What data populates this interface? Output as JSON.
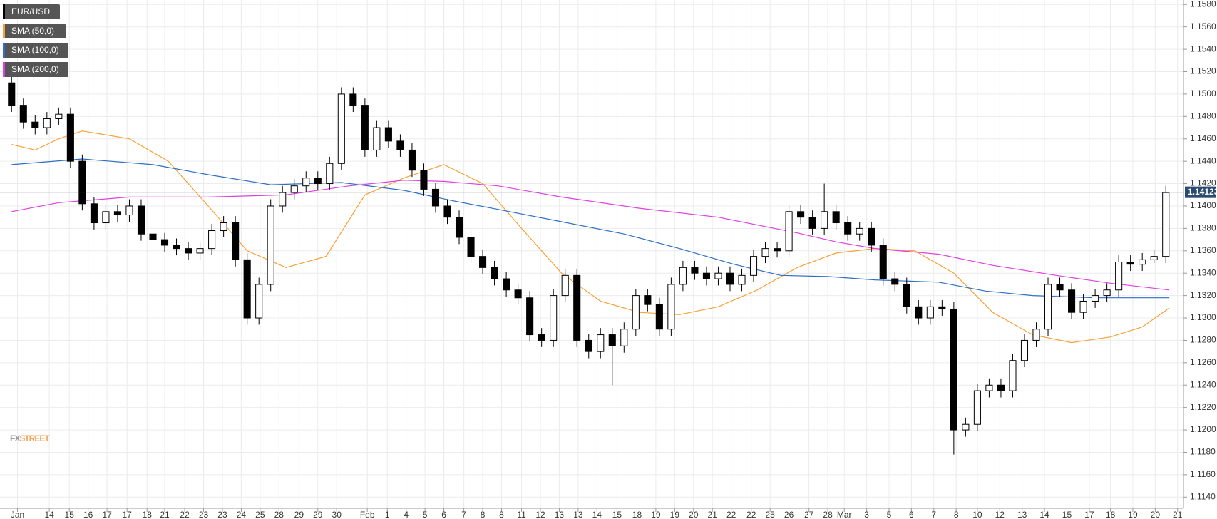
{
  "chart_data": {
    "type": "candlestick",
    "name": "EUR/USD",
    "up_color": "#ffffff",
    "down_color": "#000000",
    "edge_color": "#000000",
    "open": [
      1.151,
      1.149,
      1.1475,
      1.147,
      1.1478,
      1.1482,
      1.144,
      1.1402,
      1.1385,
      1.1395,
      1.1392,
      1.14,
      1.1375,
      1.137,
      1.1365,
      1.1362,
      1.1358,
      1.1362,
      1.1378,
      1.1385,
      1.1352,
      1.13,
      1.133,
      1.14,
      1.1412,
      1.1418,
      1.1425,
      1.142,
      1.1438,
      1.15,
      1.149,
      1.145,
      1.147,
      1.1458,
      1.145,
      1.1432,
      1.1415,
      1.14,
      1.139,
      1.1372,
      1.1355,
      1.1345,
      1.1335,
      1.1325,
      1.1318,
      1.1285,
      1.128,
      1.132,
      1.1338,
      1.128,
      1.127,
      1.1285,
      1.1275,
      1.129,
      1.132,
      1.1312,
      1.129,
      1.133,
      1.1345,
      1.134,
      1.1335,
      1.134,
      1.133,
      1.1338,
      1.1355,
      1.1362,
      1.136,
      1.1395,
      1.139,
      1.138,
      1.1395,
      1.1385,
      1.1375,
      1.138,
      1.1365,
      1.1335,
      1.133,
      1.131,
      1.13,
      1.131,
      1.1308,
      1.12,
      1.1205,
      1.1235,
      1.124,
      1.1235,
      1.1262,
      1.128,
      1.129,
      1.133,
      1.1325,
      1.1305,
      1.1315,
      1.132,
      1.1325,
      1.135,
      1.1348,
      1.1352,
      1.1355
    ],
    "high": [
      1.1516,
      1.1496,
      1.1481,
      1.1484,
      1.1488,
      1.1488,
      1.1446,
      1.1408,
      1.1401,
      1.1401,
      1.1406,
      1.1406,
      1.1381,
      1.1376,
      1.1371,
      1.1368,
      1.1368,
      1.1384,
      1.1391,
      1.1391,
      1.1358,
      1.1336,
      1.1406,
      1.1418,
      1.1424,
      1.1431,
      1.1431,
      1.1444,
      1.1506,
      1.1506,
      1.1496,
      1.1476,
      1.1476,
      1.1464,
      1.1456,
      1.1438,
      1.1421,
      1.1406,
      1.1396,
      1.1378,
      1.1361,
      1.1351,
      1.1341,
      1.1331,
      1.1324,
      1.1291,
      1.1326,
      1.1344,
      1.1344,
      1.1286,
      1.1291,
      1.1291,
      1.1296,
      1.1326,
      1.1326,
      1.1318,
      1.1336,
      1.1351,
      1.1351,
      1.1346,
      1.1346,
      1.1346,
      1.1344,
      1.1361,
      1.1368,
      1.1368,
      1.1401,
      1.1401,
      1.1396,
      1.142,
      1.1401,
      1.1391,
      1.1386,
      1.1386,
      1.1371,
      1.1341,
      1.1336,
      1.1316,
      1.1316,
      1.1316,
      1.1314,
      1.1211,
      1.1241,
      1.1246,
      1.1246,
      1.1268,
      1.1286,
      1.1296,
      1.1336,
      1.1336,
      1.1331,
      1.1321,
      1.1326,
      1.1331,
      1.1356,
      1.1356,
      1.1358,
      1.1361,
      1.1418
    ],
    "low": [
      1.1484,
      1.1469,
      1.1464,
      1.1464,
      1.1472,
      1.1434,
      1.1396,
      1.1379,
      1.1379,
      1.1386,
      1.1386,
      1.1369,
      1.1364,
      1.1359,
      1.1356,
      1.1352,
      1.1352,
      1.1356,
      1.1372,
      1.1346,
      1.1294,
      1.1294,
      1.1324,
      1.1394,
      1.1406,
      1.1412,
      1.1414,
      1.1414,
      1.1432,
      1.1484,
      1.1444,
      1.1444,
      1.1452,
      1.1444,
      1.1426,
      1.1409,
      1.1394,
      1.1384,
      1.1366,
      1.1349,
      1.1339,
      1.1329,
      1.1319,
      1.1312,
      1.1279,
      1.1274,
      1.1274,
      1.1314,
      1.1274,
      1.1264,
      1.1264,
      1.124,
      1.1269,
      1.1284,
      1.1306,
      1.1284,
      1.1284,
      1.1324,
      1.1334,
      1.1329,
      1.1329,
      1.1324,
      1.1324,
      1.1332,
      1.1349,
      1.1354,
      1.1354,
      1.1384,
      1.1374,
      1.1374,
      1.1379,
      1.1369,
      1.1369,
      1.1359,
      1.1329,
      1.1324,
      1.1304,
      1.1294,
      1.1294,
      1.1302,
      1.1178,
      1.1194,
      1.1199,
      1.1229,
      1.1229,
      1.1229,
      1.1256,
      1.1274,
      1.1284,
      1.1319,
      1.1299,
      1.1299,
      1.1309,
      1.1314,
      1.1319,
      1.1342,
      1.1342,
      1.1349,
      1.1349
    ],
    "close": [
      1.149,
      1.1475,
      1.147,
      1.1478,
      1.1482,
      1.144,
      1.1402,
      1.1385,
      1.1395,
      1.1392,
      1.14,
      1.1375,
      1.137,
      1.1365,
      1.1362,
      1.1358,
      1.1362,
      1.1378,
      1.1385,
      1.1352,
      1.13,
      1.133,
      1.14,
      1.1412,
      1.1418,
      1.1425,
      1.142,
      1.1438,
      1.15,
      1.149,
      1.145,
      1.147,
      1.1458,
      1.145,
      1.1432,
      1.1415,
      1.14,
      1.139,
      1.1372,
      1.1355,
      1.1345,
      1.1335,
      1.1325,
      1.1318,
      1.1285,
      1.128,
      1.132,
      1.1338,
      1.128,
      1.127,
      1.1285,
      1.1275,
      1.129,
      1.132,
      1.1312,
      1.129,
      1.133,
      1.1345,
      1.134,
      1.1335,
      1.134,
      1.133,
      1.1338,
      1.1355,
      1.1362,
      1.136,
      1.1395,
      1.139,
      1.138,
      1.1395,
      1.1385,
      1.1375,
      1.138,
      1.1365,
      1.1335,
      1.133,
      1.131,
      1.13,
      1.131,
      1.1308,
      1.12,
      1.1205,
      1.1235,
      1.124,
      1.1235,
      1.1262,
      1.128,
      1.129,
      1.133,
      1.1325,
      1.1305,
      1.1315,
      1.132,
      1.1325,
      1.135,
      1.1348,
      1.1352,
      1.1355,
      1.1412
    ],
    "series": [
      {
        "name": "SMA (50,0)",
        "color": "#f7a035",
        "x": [
          0,
          2,
          4,
          6,
          10,
          13.3,
          16.7,
          20,
          23.3,
          26.7,
          30,
          33.3,
          36.7,
          40,
          43.3,
          46.7,
          50,
          53.3,
          56.7,
          60,
          63.3,
          66.7,
          70,
          73.3,
          76.7,
          80,
          83.3,
          86.7,
          90,
          93.3,
          96,
          98.3
        ],
        "values": [
          1.1455,
          1.145,
          1.146,
          1.1467,
          1.146,
          1.144,
          1.14,
          1.136,
          1.1345,
          1.1355,
          1.141,
          1.1425,
          1.1437,
          1.142,
          1.138,
          1.134,
          1.1315,
          1.1305,
          1.1303,
          1.131,
          1.1325,
          1.1345,
          1.1358,
          1.1362,
          1.136,
          1.134,
          1.1305,
          1.1285,
          1.1278,
          1.1283,
          1.1292,
          1.1309
        ]
      },
      {
        "name": "SMA (100,0)",
        "color": "#2e6fc4",
        "x": [
          0,
          6,
          12,
          16.7,
          22,
          28,
          33.3,
          37.3,
          41.3,
          46.7,
          52,
          56.7,
          61.3,
          65.3,
          69.3,
          73.3,
          78.7,
          82.7,
          86.7,
          92,
          98.3
        ],
        "values": [
          1.1437,
          1.1442,
          1.1437,
          1.1428,
          1.1419,
          1.1421,
          1.1414,
          1.1405,
          1.1397,
          1.1386,
          1.1375,
          1.1362,
          1.1348,
          1.1338,
          1.1337,
          1.1334,
          1.1332,
          1.1324,
          1.132,
          1.1318,
          1.1318
        ]
      },
      {
        "name": "SMA (200,0)",
        "color": "#e040e0",
        "x": [
          0,
          4,
          10,
          16.7,
          23.3,
          28.7,
          33.3,
          36.7,
          41.3,
          46.7,
          53.3,
          60,
          66.7,
          70,
          73.3,
          78.7,
          83.3,
          88.7,
          93.3,
          98.3
        ],
        "values": [
          1.1395,
          1.1403,
          1.1408,
          1.1408,
          1.141,
          1.1418,
          1.1423,
          1.1422,
          1.1418,
          1.1408,
          1.1398,
          1.139,
          1.1376,
          1.1368,
          1.1362,
          1.1357,
          1.1347,
          1.1338,
          1.1331,
          1.1325
        ]
      }
    ],
    "last_price": 1.14123,
    "last_color": "#2b4a6f",
    "xlim": [
      -0.5,
      99.5
    ],
    "ylim": [
      1.113,
      1.1584
    ],
    "grid": true,
    "xticks": [
      {
        "value": 0.5,
        "label": "Jan"
      },
      {
        "value": 3.2,
        "label": "14"
      },
      {
        "value": 4.9,
        "label": "15"
      },
      {
        "value": 6.5,
        "label": "16"
      },
      {
        "value": 8.1,
        "label": "17"
      },
      {
        "value": 9.8,
        "label": "17"
      },
      {
        "value": 11.5,
        "label": "18"
      },
      {
        "value": 13,
        "label": "21"
      },
      {
        "value": 14.7,
        "label": "22"
      },
      {
        "value": 16.3,
        "label": "23"
      },
      {
        "value": 17.9,
        "label": "23"
      },
      {
        "value": 19.5,
        "label": "24"
      },
      {
        "value": 21.1,
        "label": "25"
      },
      {
        "value": 22.7,
        "label": "28"
      },
      {
        "value": 24.4,
        "label": "29"
      },
      {
        "value": 26,
        "label": "29"
      },
      {
        "value": 27.6,
        "label": "30"
      },
      {
        "value": 30.2,
        "label": "Feb"
      },
      {
        "value": 31.9,
        "label": "1"
      },
      {
        "value": 33.5,
        "label": "4"
      },
      {
        "value": 35.1,
        "label": "5"
      },
      {
        "value": 36.7,
        "label": "6"
      },
      {
        "value": 38.4,
        "label": "7"
      },
      {
        "value": 40,
        "label": "8"
      },
      {
        "value": 41.6,
        "label": "8"
      },
      {
        "value": 43.3,
        "label": "11"
      },
      {
        "value": 44.9,
        "label": "12"
      },
      {
        "value": 46.5,
        "label": "13"
      },
      {
        "value": 48.1,
        "label": "13"
      },
      {
        "value": 49.7,
        "label": "14"
      },
      {
        "value": 51.4,
        "label": "15"
      },
      {
        "value": 53.1,
        "label": "18"
      },
      {
        "value": 54.7,
        "label": "19"
      },
      {
        "value": 56.3,
        "label": "19"
      },
      {
        "value": 57.9,
        "label": "20"
      },
      {
        "value": 59.5,
        "label": "21"
      },
      {
        "value": 61.1,
        "label": "22"
      },
      {
        "value": 62.8,
        "label": "22"
      },
      {
        "value": 64.4,
        "label": "25"
      },
      {
        "value": 66,
        "label": "26"
      },
      {
        "value": 67.7,
        "label": "27"
      },
      {
        "value": 69.3,
        "label": "28"
      },
      {
        "value": 70.7,
        "label": "Mar"
      },
      {
        "value": 72.6,
        "label": "3"
      },
      {
        "value": 74.5,
        "label": "5"
      },
      {
        "value": 76.4,
        "label": "6"
      },
      {
        "value": 78.3,
        "label": "7"
      },
      {
        "value": 80.2,
        "label": "8"
      },
      {
        "value": 82,
        "label": "10"
      },
      {
        "value": 83.9,
        "label": "12"
      },
      {
        "value": 85.8,
        "label": "13"
      },
      {
        "value": 87.7,
        "label": "14"
      },
      {
        "value": 89.6,
        "label": "15"
      },
      {
        "value": 91.5,
        "label": "17"
      },
      {
        "value": 93.3,
        "label": "18"
      },
      {
        "value": 95.2,
        "label": "19"
      },
      {
        "value": 97.1,
        "label": "20"
      },
      {
        "value": 99,
        "label": "21"
      }
    ],
    "yticks": [
      {
        "value": 1.114,
        "label": "1.1140"
      },
      {
        "value": 1.116,
        "label": "1.1160"
      },
      {
        "value": 1.118,
        "label": "1.1180"
      },
      {
        "value": 1.12,
        "label": "1.1200"
      },
      {
        "value": 1.122,
        "label": "1.1220"
      },
      {
        "value": 1.124,
        "label": "1.1240"
      },
      {
        "value": 1.126,
        "label": "1.1260"
      },
      {
        "value": 1.128,
        "label": "1.1280"
      },
      {
        "value": 1.13,
        "label": "1.1300"
      },
      {
        "value": 1.132,
        "label": "1.1320"
      },
      {
        "value": 1.134,
        "label": "1.1340"
      },
      {
        "value": 1.136,
        "label": "1.1360"
      },
      {
        "value": 1.138,
        "label": "1.1380"
      },
      {
        "value": 1.14,
        "label": "1.1400"
      },
      {
        "value": 1.142,
        "label": "1.1420"
      },
      {
        "value": 1.144,
        "label": "1.1440"
      },
      {
        "value": 1.146,
        "label": "1.1460"
      },
      {
        "value": 1.148,
        "label": "1.1480"
      },
      {
        "value": 1.15,
        "label": "1.1500"
      },
      {
        "value": 1.152,
        "label": "1.1520"
      },
      {
        "value": 1.154,
        "label": "1.1540"
      },
      {
        "value": 1.156,
        "label": "1.1560"
      },
      {
        "value": 1.158,
        "label": "1.1580"
      }
    ],
    "watermark": [
      "FX",
      "STREET"
    ]
  }
}
